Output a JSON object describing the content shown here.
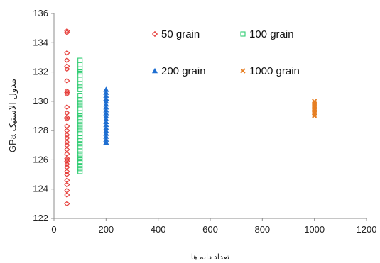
{
  "chart_data": {
    "type": "scatter",
    "xlabel": "تعداد دانه ها",
    "ylabel": "مدول الاستیک GPa",
    "xlim": [
      0,
      1200
    ],
    "ylim": [
      122,
      136
    ],
    "x_ticks": [
      "0",
      "200",
      "400",
      "600",
      "800",
      "1000",
      "1200"
    ],
    "y_ticks": [
      "122",
      "124",
      "126",
      "128",
      "130",
      "132",
      "134",
      "136"
    ],
    "grid": false,
    "legend_position": "top-right",
    "series": [
      {
        "name": "50 grain",
        "marker": "diamond",
        "color": "#e53935",
        "x": 50,
        "values": [
          134.8,
          134.7,
          133.3,
          132.8,
          132.4,
          132.2,
          131.4,
          130.7,
          130.6,
          130.5,
          129.6,
          129.2,
          128.9,
          128.8,
          128.3,
          128.0,
          127.7,
          127.5,
          127.2,
          127.0,
          126.7,
          126.4,
          126.1,
          126.0,
          125.9,
          125.7,
          125.5,
          125.2,
          125.0,
          124.6,
          124.3,
          123.9,
          123.6,
          123.0
        ]
      },
      {
        "name": "100 grain",
        "marker": "square",
        "color": "#2ecc71",
        "x": 100,
        "values": [
          132.8,
          132.5,
          132.2,
          132.0,
          131.8,
          131.5,
          131.2,
          131.0,
          130.8,
          130.4,
          130.1,
          129.9,
          129.7,
          129.5,
          129.2,
          129.0,
          128.8,
          128.6,
          128.4,
          128.2,
          128.0,
          127.8,
          127.5,
          127.3,
          127.1,
          126.9,
          126.6,
          126.4,
          126.2,
          126.0,
          125.8,
          125.6,
          125.4,
          125.2
        ]
      },
      {
        "name": "200 grain",
        "marker": "triangle",
        "color": "#1f6fd1",
        "x": 200,
        "values": [
          130.8,
          130.6,
          130.4,
          130.2,
          130.0,
          129.8,
          129.6,
          129.4,
          129.2,
          129.0,
          128.8,
          128.6,
          128.4,
          128.2,
          128.0,
          127.8,
          127.6,
          127.4,
          127.2
        ]
      },
      {
        "name": "1000 grain",
        "marker": "x",
        "color": "#e67e22",
        "x": 1000,
        "values": [
          130.0,
          129.9,
          129.8,
          129.7,
          129.6,
          129.5,
          129.4,
          129.3,
          129.2,
          129.1,
          129.0
        ]
      }
    ]
  }
}
